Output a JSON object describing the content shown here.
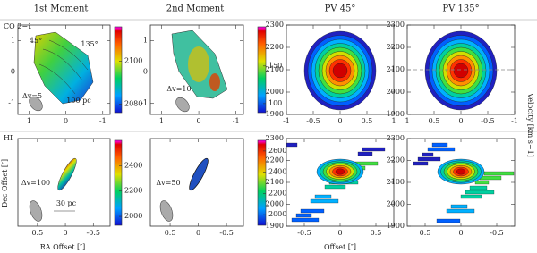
{
  "column_titles": [
    "1st Moment",
    "2nd Moment",
    "PV 45°",
    "PV 135°"
  ],
  "row_labels": [
    "CO 2−1",
    "HI"
  ],
  "axis_labels": {
    "ra": "RA Offset [″]",
    "dec": "Dec Offset [″]",
    "offset": "Offset [″]",
    "velocity": "Velocity [km s−1]"
  },
  "panels": [
    {
      "xlim": [
        1.3,
        -1.2
      ],
      "ylim": [
        -1.35,
        1.5
      ],
      "xticks": [
        1,
        0,
        -1
      ],
      "yticks": [
        1,
        0,
        -1
      ],
      "colorbar": {
        "lim": [
          2076,
          2116
        ],
        "ticks": [
          2080,
          2100
        ]
      },
      "annotations": [
        "45°",
        "135°",
        "Δv=5",
        "100 pc"
      ]
    },
    {
      "xlim": [
        1.3,
        -1.2
      ],
      "ylim": [
        -1.35,
        1.5
      ],
      "xticks": [
        1,
        0,
        -1
      ],
      "yticks": [
        1,
        0,
        -1
      ],
      "colorbar": {
        "lim": [
          88,
          202
        ],
        "ticks": [
          100,
          150
        ]
      },
      "annotations": [
        "Δv=10"
      ]
    },
    {
      "xlim": [
        -1,
        1
      ],
      "ylim": [
        1900,
        2300
      ],
      "xticks": [
        -1,
        -0.5,
        0,
        0.5,
        1
      ],
      "yticks": [
        1900,
        2000,
        2100,
        2200,
        2300
      ]
    },
    {
      "xlim": [
        1,
        -1
      ],
      "ylim": [
        1900,
        2300
      ],
      "xticks": [
        1,
        0.5,
        0,
        -0.5,
        -1
      ],
      "yticks": [
        1900,
        2000,
        2100,
        2200,
        2300
      ],
      "reference_line": 2100
    },
    {
      "xlim": [
        0.85,
        -0.8
      ],
      "ylim": [
        -0.8,
        0.8
      ],
      "xticks": [
        0.5,
        0,
        -0.5
      ],
      "colorbar": {
        "lim": [
          1930,
          2600
        ],
        "ticks": [
          2000,
          2200,
          2400
        ]
      },
      "annotations": [
        "Δv=100",
        "30 pc"
      ]
    },
    {
      "xlim": [
        0.85,
        -0.8
      ],
      "ylim": [
        -0.8,
        0.8
      ],
      "xticks": [
        0.5,
        0,
        -0.5
      ],
      "colorbar": {
        "lim": [
          1900,
          2700
        ],
        "ticks": [
          2000,
          2200,
          2400,
          2600
        ]
      },
      "annotations": [
        "Δv=50"
      ]
    },
    {
      "xlim": [
        -0.75,
        0.75
      ],
      "ylim": [
        1900,
        2300
      ],
      "xticks": [
        -0.5,
        0,
        0.5
      ],
      "yticks": [
        1900,
        2000,
        2100,
        2200,
        2300
      ]
    },
    {
      "xlim": [
        0.75,
        -0.75
      ],
      "ylim": [
        1900,
        2300
      ],
      "xticks": [
        0.5,
        0,
        -0.5
      ],
      "yticks": [
        1900,
        2000,
        2100,
        2200,
        2300
      ]
    }
  ]
}
